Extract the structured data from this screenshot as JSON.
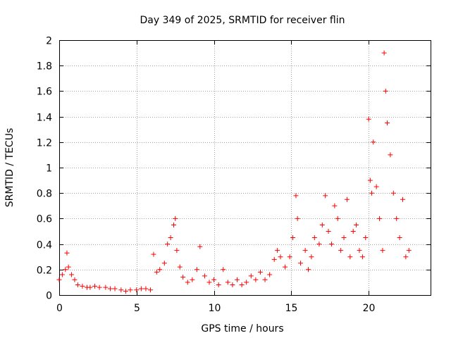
{
  "chart_data": {
    "type": "scatter",
    "title": "Day 349 of 2025, SRMTID for receiver flin",
    "xlabel": "GPS time / hours",
    "ylabel": "SRMTID / TECUs",
    "xlim": [
      0,
      24
    ],
    "ylim": [
      0,
      2
    ],
    "xticks": [
      0,
      5,
      10,
      15,
      20
    ],
    "yticks": [
      0,
      0.2,
      0.4,
      0.6,
      0.8,
      1,
      1.2,
      1.4,
      1.6,
      1.8,
      2
    ],
    "xtick_labels": [
      "0",
      "5",
      "10",
      "15",
      "20"
    ],
    "ytick_labels": [
      "0",
      "0.2",
      "0.4",
      "0.6",
      "0.8",
      "1",
      "1.2",
      "1.4",
      "1.6",
      "1.8",
      "2"
    ],
    "grid": true,
    "marker": "+",
    "series": [
      {
        "name": "SRMTID",
        "color": "#ff0000",
        "x": [
          0.0,
          0.2,
          0.4,
          0.5,
          0.6,
          0.8,
          1.0,
          1.2,
          1.5,
          1.8,
          2.0,
          2.3,
          2.6,
          3.0,
          3.3,
          3.6,
          4.0,
          4.3,
          4.6,
          5.0,
          5.3,
          5.6,
          5.9,
          6.1,
          6.3,
          6.5,
          6.8,
          7.0,
          7.2,
          7.4,
          7.5,
          7.6,
          7.8,
          8.0,
          8.3,
          8.6,
          8.9,
          9.1,
          9.4,
          9.7,
          10.0,
          10.3,
          10.6,
          10.9,
          11.2,
          11.5,
          11.8,
          12.1,
          12.4,
          12.7,
          13.0,
          13.3,
          13.6,
          13.9,
          14.1,
          14.3,
          14.6,
          14.9,
          15.1,
          15.3,
          15.4,
          15.6,
          15.9,
          16.1,
          16.3,
          16.5,
          16.8,
          17.0,
          17.2,
          17.4,
          17.6,
          17.8,
          18.0,
          18.2,
          18.4,
          18.6,
          18.8,
          19.0,
          19.2,
          19.4,
          19.6,
          19.8,
          20.0,
          20.1,
          20.2,
          20.3,
          20.5,
          20.7,
          20.9,
          21.0,
          21.1,
          21.2,
          21.4,
          21.6,
          21.8,
          22.0,
          22.2,
          22.4,
          22.6
        ],
        "y": [
          0.12,
          0.16,
          0.2,
          0.33,
          0.22,
          0.16,
          0.12,
          0.08,
          0.07,
          0.06,
          0.06,
          0.07,
          0.06,
          0.06,
          0.05,
          0.05,
          0.04,
          0.03,
          0.04,
          0.04,
          0.05,
          0.05,
          0.04,
          0.32,
          0.18,
          0.2,
          0.25,
          0.4,
          0.45,
          0.55,
          0.6,
          0.35,
          0.22,
          0.14,
          0.1,
          0.12,
          0.2,
          0.38,
          0.15,
          0.1,
          0.12,
          0.08,
          0.2,
          0.1,
          0.08,
          0.12,
          0.08,
          0.1,
          0.15,
          0.12,
          0.18,
          0.12,
          0.16,
          0.28,
          0.35,
          0.3,
          0.22,
          0.3,
          0.45,
          0.78,
          0.6,
          0.25,
          0.35,
          0.2,
          0.3,
          0.45,
          0.4,
          0.55,
          0.78,
          0.5,
          0.4,
          0.7,
          0.6,
          0.35,
          0.45,
          0.75,
          0.3,
          0.5,
          0.55,
          0.35,
          0.3,
          0.45,
          1.38,
          0.9,
          0.8,
          1.2,
          0.85,
          0.6,
          0.35,
          1.9,
          1.6,
          1.35,
          1.1,
          0.8,
          0.6,
          0.45,
          0.75,
          0.3,
          0.35
        ]
      }
    ]
  }
}
